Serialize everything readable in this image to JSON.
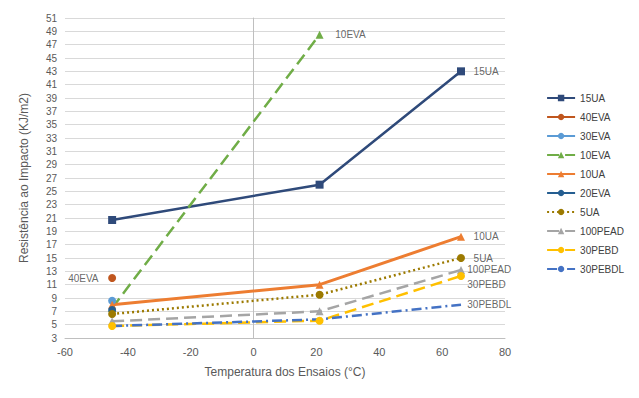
{
  "chart_data": {
    "type": "line",
    "x_label": "Temperatura dos Ensaios (°C)",
    "y_label": "Resistência ao Impacto (KJ/m2)",
    "xlim": [
      -60,
      80
    ],
    "xticks": [
      -60,
      -40,
      -20,
      0,
      20,
      40,
      60,
      80
    ],
    "ylim": [
      3,
      51
    ],
    "yticks": [
      3,
      5,
      7,
      9,
      11,
      13,
      15,
      17,
      19,
      21,
      23,
      25,
      27,
      29,
      31,
      33,
      35,
      37,
      39,
      41,
      43,
      45,
      47,
      49,
      51
    ],
    "grid": true,
    "legend": "right",
    "series": [
      {
        "name": "15UA",
        "color": "#2F4A7A",
        "marker": "square",
        "line_style": "solid",
        "x": [
          -45,
          21,
          66
        ],
        "values": [
          20.7,
          26,
          43
        ]
      },
      {
        "name": "40EVA",
        "color": "#C0561E",
        "marker": "circle",
        "line_style": "solid",
        "x": [
          -45
        ],
        "values": [
          12
        ]
      },
      {
        "name": "30EVA",
        "color": "#5B9BD5",
        "marker": "circle",
        "line_style": "solid",
        "x": [
          -45
        ],
        "values": [
          8.6
        ]
      },
      {
        "name": "10EVA",
        "color": "#70AD47",
        "marker": "triangle",
        "line_style": "dashed",
        "x": [
          -45,
          21
        ],
        "values": [
          7.5,
          48.5
        ]
      },
      {
        "name": "10UA",
        "color": "#ED7D31",
        "marker": "triangle",
        "line_style": "double",
        "x": [
          -45,
          21,
          66
        ],
        "values": [
          8,
          11,
          18.2
        ]
      },
      {
        "name": "20EVA",
        "color": "#255E91",
        "marker": "circle",
        "line_style": "solid",
        "x": [
          -45
        ],
        "values": [
          7.2
        ]
      },
      {
        "name": "5UA",
        "color": "#9C7A00",
        "marker": "circle",
        "line_style": "dotted",
        "x": [
          -45,
          21,
          66
        ],
        "values": [
          6.6,
          9.5,
          15
        ]
      },
      {
        "name": "100PEAD",
        "color": "#A5A5A5",
        "marker": "triangle",
        "line_style": "dashed",
        "x": [
          -45,
          21,
          66
        ],
        "values": [
          5.5,
          7,
          13.2
        ]
      },
      {
        "name": "30PEBD",
        "color": "#FFC000",
        "marker": "circle",
        "line_style": "dashed",
        "x": [
          -45,
          21,
          66
        ],
        "values": [
          4.8,
          5.6,
          12.3
        ]
      },
      {
        "name": "30PEBDL",
        "color": "#4472C4",
        "marker": "none",
        "line_style": "dashdot",
        "x": [
          -45,
          21,
          66
        ],
        "values": [
          4.8,
          5.8,
          8
        ]
      }
    ],
    "annotations": [
      {
        "text": "10EVA",
        "x": 26,
        "y": 48.5
      },
      {
        "text": "15UA",
        "x": 70,
        "y": 43
      },
      {
        "text": "10UA",
        "x": 70,
        "y": 18.2
      },
      {
        "text": "5UA",
        "x": 70,
        "y": 15
      },
      {
        "text": "100PEAD",
        "x": 68,
        "y": 13.3
      },
      {
        "text": "30PEBD",
        "x": 68,
        "y": 11
      },
      {
        "text": "30PEBDL",
        "x": 68,
        "y": 8
      },
      {
        "text": "40EVA",
        "x": -59,
        "y": 12
      }
    ]
  }
}
